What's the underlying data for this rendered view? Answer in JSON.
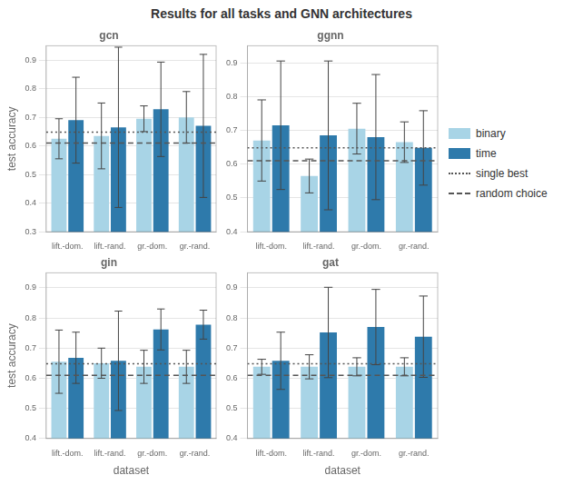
{
  "title": "Results for all tasks and GNN architectures",
  "legend": "right",
  "chart_data": [
    {
      "type": "bar",
      "title": "gcn",
      "categories": [
        "lift.-dom.",
        "lift.-rand.",
        "gr.-dom.",
        "gr.-rand."
      ],
      "series": [
        {
          "name": "binary",
          "color": "#a8d4e6",
          "values": [
            0.625,
            0.635,
            0.695,
            0.7
          ],
          "errors": [
            0.07,
            0.115,
            0.045,
            0.09
          ]
        },
        {
          "name": "time",
          "color": "#2e7aab",
          "values": [
            0.69,
            0.665,
            0.728,
            0.67
          ],
          "errors": [
            0.15,
            0.28,
            0.165,
            0.25
          ]
        }
      ],
      "reference_lines": [
        {
          "name": "single best",
          "value": 0.648,
          "color": "#555555",
          "line_style": "dotted"
        },
        {
          "name": "random choice",
          "value": 0.61,
          "color": "#555555",
          "line_style": "dashed"
        }
      ],
      "ylabel": "test accuracy",
      "ylim": [
        0.3,
        0.95
      ],
      "yticks": [
        0.3,
        0.4,
        0.5,
        0.6,
        0.7,
        0.8,
        0.9
      ],
      "grid": true
    },
    {
      "type": "bar",
      "title": "ggnn",
      "categories": [
        "lift.-dom.",
        "lift.-rand.",
        "gr.-dom.",
        "gr.-rand."
      ],
      "series": [
        {
          "name": "binary",
          "color": "#a8d4e6",
          "values": [
            0.67,
            0.565,
            0.705,
            0.665
          ],
          "errors": [
            0.12,
            0.05,
            0.075,
            0.06
          ]
        },
        {
          "name": "time",
          "color": "#2e7aab",
          "values": [
            0.715,
            0.685,
            0.68,
            0.648
          ],
          "errors": [
            0.19,
            0.22,
            0.185,
            0.11
          ]
        }
      ],
      "reference_lines": [
        {
          "name": "single best",
          "value": 0.648,
          "color": "#555555",
          "line_style": "dotted"
        },
        {
          "name": "random choice",
          "value": 0.61,
          "color": "#555555",
          "line_style": "dashed"
        }
      ],
      "ylim": [
        0.4,
        0.95
      ],
      "yticks": [
        0.4,
        0.5,
        0.6,
        0.7,
        0.8,
        0.9
      ],
      "grid": true
    },
    {
      "type": "bar",
      "title": "gin",
      "categories": [
        "lift.-dom.",
        "lift.-rand.",
        "gr.-dom.",
        "gr.-rand."
      ],
      "series": [
        {
          "name": "binary",
          "color": "#a8d4e6",
          "values": [
            0.655,
            0.65,
            0.638,
            0.638
          ],
          "errors": [
            0.105,
            0.05,
            0.055,
            0.055
          ]
        },
        {
          "name": "time",
          "color": "#2e7aab",
          "values": [
            0.668,
            0.658,
            0.762,
            0.778
          ],
          "errors": [
            0.085,
            0.165,
            0.068,
            0.048
          ]
        }
      ],
      "reference_lines": [
        {
          "name": "single best",
          "value": 0.648,
          "color": "#555555",
          "line_style": "dotted"
        },
        {
          "name": "random choice",
          "value": 0.61,
          "color": "#555555",
          "line_style": "dashed"
        }
      ],
      "xlabel": "dataset",
      "ylabel": "test accuracy",
      "ylim": [
        0.4,
        0.95
      ],
      "yticks": [
        0.4,
        0.5,
        0.6,
        0.7,
        0.8,
        0.9
      ],
      "grid": true
    },
    {
      "type": "bar",
      "title": "gat",
      "categories": [
        "lift.-dom.",
        "lift.-rand.",
        "gr.-dom.",
        "gr.-rand."
      ],
      "series": [
        {
          "name": "binary",
          "color": "#a8d4e6",
          "values": [
            0.638,
            0.638,
            0.638,
            0.638
          ],
          "errors": [
            0.025,
            0.04,
            0.03,
            0.03
          ]
        },
        {
          "name": "time",
          "color": "#2e7aab",
          "values": [
            0.658,
            0.752,
            0.77,
            0.738
          ],
          "errors": [
            0.095,
            0.15,
            0.125,
            0.135
          ]
        }
      ],
      "reference_lines": [
        {
          "name": "single best",
          "value": 0.648,
          "color": "#555555",
          "line_style": "dotted"
        },
        {
          "name": "random choice",
          "value": 0.61,
          "color": "#555555",
          "line_style": "dashed"
        }
      ],
      "xlabel": "dataset",
      "ylim": [
        0.4,
        0.95
      ],
      "yticks": [
        0.4,
        0.5,
        0.6,
        0.7,
        0.8,
        0.9
      ],
      "grid": true
    }
  ]
}
